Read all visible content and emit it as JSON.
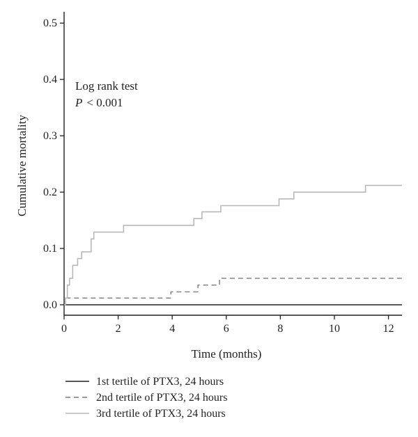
{
  "chart_data": {
    "type": "line",
    "title": "",
    "xlabel": "Time (months)",
    "ylabel": "Cumulative mortality",
    "xlim": [
      0,
      12.5
    ],
    "ylim": [
      0,
      0.52
    ],
    "x_ticks": [
      0,
      2,
      4,
      6,
      8,
      10,
      12
    ],
    "x_tick_labels": [
      "0",
      "2",
      "4",
      "6",
      "8",
      "10",
      "12"
    ],
    "y_ticks": [
      0.0,
      0.1,
      0.2,
      0.3,
      0.4,
      0.5
    ],
    "y_tick_labels": [
      "0.0",
      "0.1",
      "0.2",
      "0.3",
      "0.4",
      "0.5"
    ],
    "grid": false,
    "legend_position": "bottom",
    "annotations": [
      "Log rank test",
      "P",
      "< 0.001"
    ],
    "series": [
      {
        "name": "1st tertile of PTX3, 24 hours",
        "style": "solid",
        "color": "#231f20",
        "x": [
          0,
          12.5
        ],
        "y": [
          0,
          0
        ]
      },
      {
        "name": "2nd tertile of PTX3, 24 hours",
        "style": "dashed",
        "color": "#7a7a7a",
        "x": [
          0,
          0.05,
          3.95,
          4.95,
          5.75,
          12.5
        ],
        "y": [
          0,
          0.012,
          0.023,
          0.035,
          0.047,
          0.047
        ]
      },
      {
        "name": "3rd tertile of PTX3, 24 hours",
        "style": "solid",
        "color": "#b8b8b8",
        "x": [
          0,
          0.05,
          0.12,
          0.2,
          0.32,
          0.5,
          0.65,
          1.0,
          1.1,
          1.3,
          2.2,
          4.8,
          5.1,
          5.8,
          7.95,
          8.5,
          11.15,
          12.5
        ],
        "y": [
          0,
          0.012,
          0.035,
          0.047,
          0.07,
          0.082,
          0.094,
          0.117,
          0.129,
          0.129,
          0.141,
          0.153,
          0.165,
          0.176,
          0.188,
          0.2,
          0.212,
          0.212
        ]
      }
    ]
  }
}
